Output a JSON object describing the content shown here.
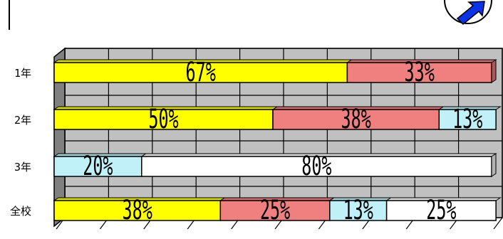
{
  "nav": {
    "icon": "arrow-right-icon",
    "color": "#0a32e6"
  },
  "chart_data": {
    "type": "bar",
    "stacked": true,
    "orientation": "horizontal",
    "percent_scale": true,
    "categories": [
      "1年",
      "2年",
      "3年",
      "全校"
    ],
    "series": [
      {
        "values": [
          67,
          50,
          0,
          38
        ],
        "labels": [
          "67%",
          "50%",
          "",
          "38%"
        ],
        "color": "#ffff00"
      },
      {
        "values": [
          33,
          38,
          0,
          25
        ],
        "labels": [
          "33%",
          "38%",
          "",
          "25%"
        ],
        "color": "#f08080"
      },
      {
        "values": [
          0,
          13,
          20,
          13
        ],
        "labels": [
          "",
          "13%",
          "20%",
          "13%"
        ],
        "color": "#c0f0f8"
      },
      {
        "values": [
          0,
          0,
          80,
          25
        ],
        "labels": [
          "",
          "",
          "80%",
          "25%"
        ],
        "color": "#ffffff"
      }
    ],
    "xlim": [
      0,
      100
    ],
    "grid": true,
    "legend": "none",
    "title": "",
    "xlabel": "",
    "ylabel": ""
  }
}
